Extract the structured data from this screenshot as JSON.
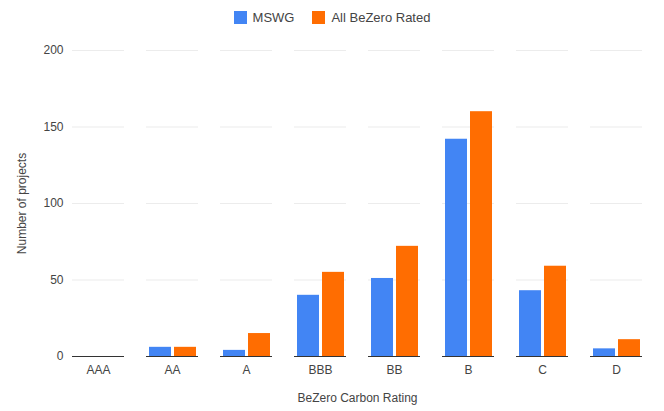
{
  "chart_data": {
    "type": "bar",
    "x_label": "BeZero Carbon Rating",
    "y_label": "Number of projects",
    "categories": [
      "AAA",
      "AA",
      "A",
      "BBB",
      "BB",
      "B",
      "C",
      "D"
    ],
    "series": [
      {
        "name": "MSWG",
        "color": "#4285f4",
        "values": [
          0,
          6,
          4,
          40,
          51,
          142,
          43,
          5
        ]
      },
      {
        "name": "All BeZero Rated",
        "color": "#ff6d01",
        "values": [
          0,
          6,
          15,
          55,
          72,
          160,
          59,
          11
        ]
      }
    ],
    "ylim": [
      0,
      200
    ],
    "yticks": [
      0,
      50,
      100,
      150,
      200
    ],
    "grid": true,
    "legend": "top"
  }
}
